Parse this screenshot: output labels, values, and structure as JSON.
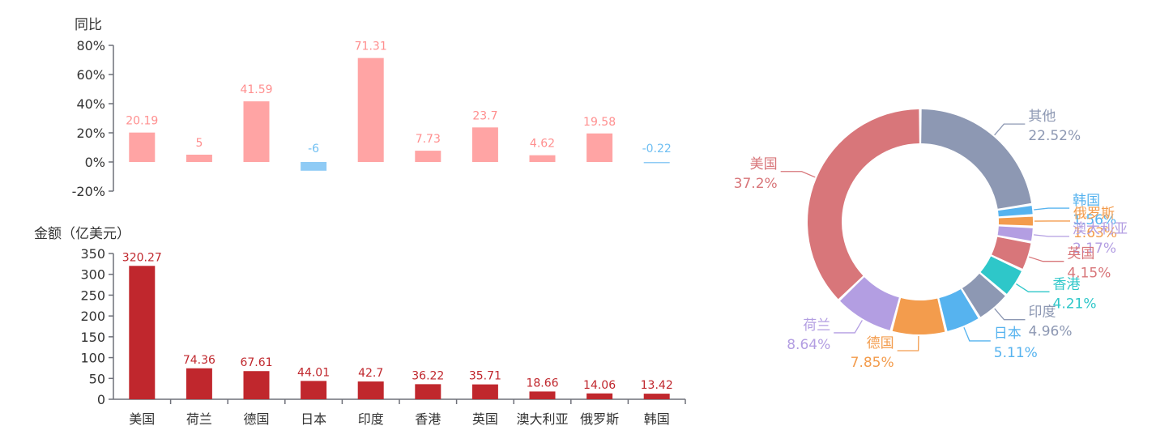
{
  "chart_data": [
    {
      "type": "bar",
      "ylabel": "同比",
      "ylim": [
        -20,
        80
      ],
      "yticks": [
        "-20%",
        "0%",
        "20%",
        "40%",
        "60%",
        "80%"
      ],
      "categories": [
        "美国",
        "荷兰",
        "德国",
        "日本",
        "印度",
        "香港",
        "英国",
        "澳大利亚",
        "俄罗斯",
        "韩国"
      ],
      "values": [
        20.19,
        5,
        41.59,
        -6,
        71.31,
        7.73,
        23.7,
        4.62,
        19.58,
        -0.22
      ],
      "value_labels": [
        "20.19",
        "5",
        "41.59",
        "-6",
        "71.31",
        "7.73",
        "23.7",
        "4.62",
        "19.58",
        "-0.22"
      ],
      "colors": {
        "positive": "#ffa4a4",
        "negative": "#8fcbf5",
        "positive_label": "#ff8f8f",
        "negative_label": "#6fbff2"
      }
    },
    {
      "type": "bar",
      "ylabel": "金额（亿美元）",
      "ylim": [
        0,
        350
      ],
      "yticks": [
        "0",
        "50",
        "100",
        "150",
        "200",
        "250",
        "300",
        "350"
      ],
      "categories": [
        "美国",
        "荷兰",
        "德国",
        "日本",
        "印度",
        "香港",
        "英国",
        "澳大利亚",
        "俄罗斯",
        "韩国"
      ],
      "values": [
        320.27,
        74.36,
        67.61,
        44.01,
        42.7,
        36.22,
        35.71,
        18.66,
        14.06,
        13.42
      ],
      "value_labels": [
        "320.27",
        "74.36",
        "67.61",
        "44.01",
        "42.7",
        "36.22",
        "35.71",
        "18.66",
        "14.06",
        "13.42"
      ],
      "color": "#c0272d"
    },
    {
      "type": "pie",
      "donut": true,
      "slices": [
        {
          "name": "其他",
          "pct": "22.52%",
          "value": 22.52,
          "color": "#8d98b3"
        },
        {
          "name": "韩国",
          "pct": "1.56%",
          "value": 1.56,
          "color": "#56b3ef"
        },
        {
          "name": "俄罗斯",
          "pct": "1.63%",
          "value": 1.63,
          "color": "#f39c4d"
        },
        {
          "name": "澳大利亚",
          "pct": "2.17%",
          "value": 2.17,
          "color": "#b39ee2"
        },
        {
          "name": "英国",
          "pct": "4.15%",
          "value": 4.15,
          "color": "#d8767a"
        },
        {
          "name": "香港",
          "pct": "4.21%",
          "value": 4.21,
          "color": "#2ec7c9"
        },
        {
          "name": "印度",
          "pct": "4.96%",
          "value": 4.96,
          "color": "#8d98b3"
        },
        {
          "name": "日本",
          "pct": "5.11%",
          "value": 5.11,
          "color": "#56b3ef"
        },
        {
          "name": "德国",
          "pct": "7.85%",
          "value": 7.85,
          "color": "#f39c4d"
        },
        {
          "name": "荷兰",
          "pct": "8.64%",
          "value": 8.64,
          "color": "#b39ee2"
        },
        {
          "name": "美国",
          "pct": "37.2%",
          "value": 37.2,
          "color": "#d8767a"
        }
      ]
    }
  ]
}
